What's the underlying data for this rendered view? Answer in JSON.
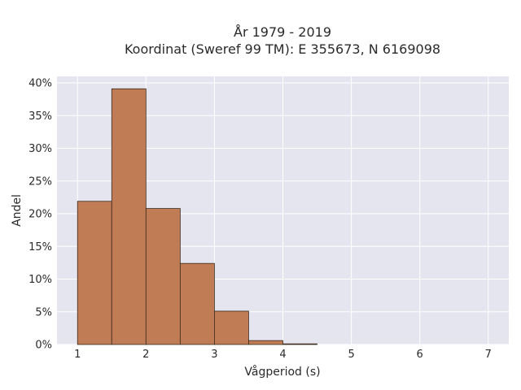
{
  "chart_data": {
    "type": "bar",
    "title_line1": "År 1979 - 2019",
    "title_line2": "Koordinat (Sweref 99 TM): E 355673, N 6169098",
    "xlabel": "Vågperiod (s)",
    "ylabel": "Andel",
    "x_ticks": [
      "1",
      "2",
      "3",
      "4",
      "5",
      "6",
      "7"
    ],
    "x_tick_values": [
      1,
      2,
      3,
      4,
      5,
      6,
      7
    ],
    "xlim": [
      0.7,
      7.3
    ],
    "y_ticks": [
      "0%",
      "5%",
      "10%",
      "15%",
      "20%",
      "25%",
      "30%",
      "35%",
      "40%"
    ],
    "y_tick_values": [
      0,
      5,
      10,
      15,
      20,
      25,
      30,
      35,
      40
    ],
    "ylim": [
      0,
      41
    ],
    "bins": [
      {
        "x0": 1.0,
        "x1": 1.5,
        "value": 21.9
      },
      {
        "x0": 1.5,
        "x1": 2.0,
        "value": 39.1
      },
      {
        "x0": 2.0,
        "x1": 2.5,
        "value": 20.8
      },
      {
        "x0": 2.5,
        "x1": 3.0,
        "value": 12.4
      },
      {
        "x0": 3.0,
        "x1": 3.5,
        "value": 5.1
      },
      {
        "x0": 3.5,
        "x1": 4.0,
        "value": 0.6
      },
      {
        "x0": 4.0,
        "x1": 4.5,
        "value": 0.1
      }
    ],
    "grid": true,
    "colors": {
      "bar_fill": "#bf7c55",
      "bar_stroke": "#3b2a1e",
      "plot_bg": "#e5e5f0",
      "grid": "#ffffff"
    }
  }
}
